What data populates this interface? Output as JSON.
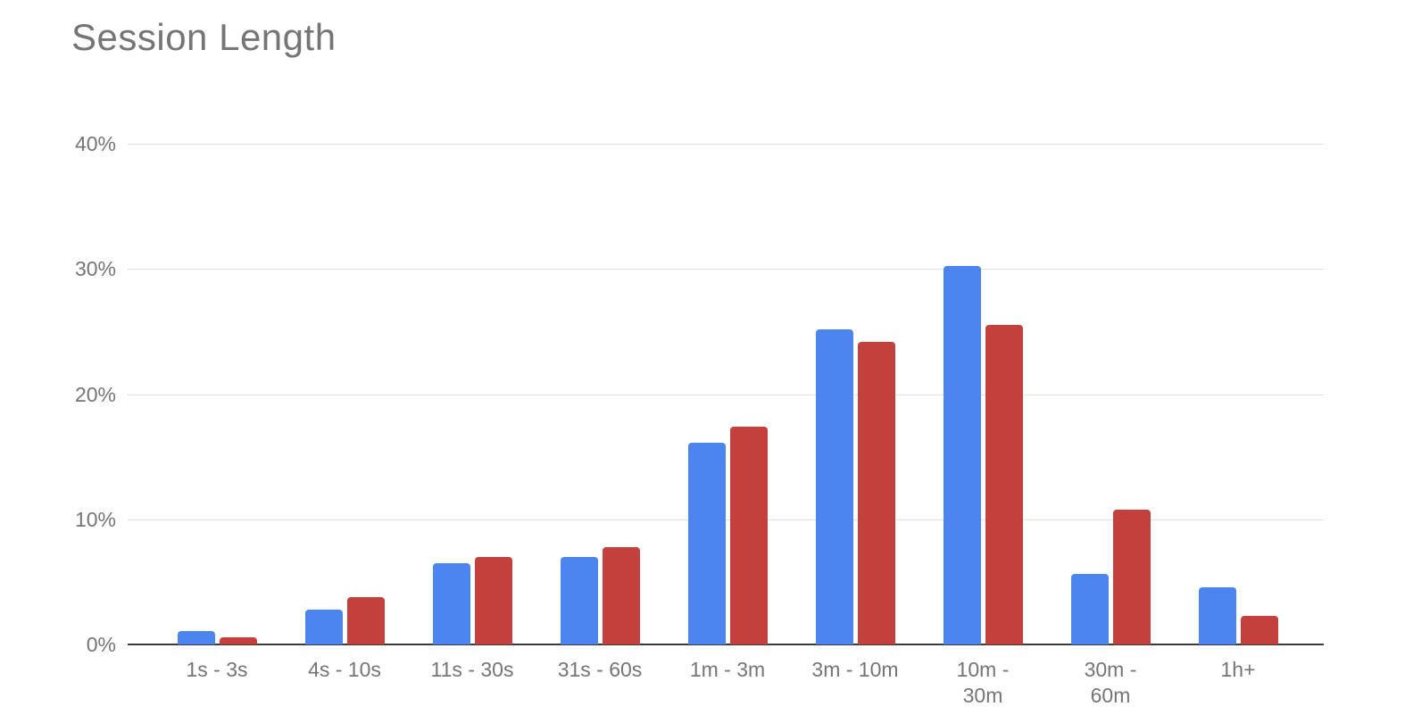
{
  "title": "Session Length",
  "colors": {
    "series_blue": "#4d85f0",
    "series_red": "#c4403c",
    "title_text": "#757575",
    "axis_text": "#757575",
    "gridline": "#e0e0e0",
    "axis_line": "#3b3b3b",
    "background": "#ffffff"
  },
  "chart_data": {
    "type": "bar",
    "title": "Session Length",
    "categories": [
      "1s - 3s",
      "4s - 10s",
      "11s - 30s",
      "31s - 60s",
      "1m - 3m",
      "3m - 10m",
      "10m -\n30m",
      "30m -\n60m",
      "1h+"
    ],
    "series": [
      {
        "name": "blue",
        "color": "#4d85f0",
        "values": [
          1.1,
          2.8,
          6.5,
          7.0,
          16.1,
          25.2,
          30.2,
          5.6,
          4.6
        ]
      },
      {
        "name": "red",
        "color": "#c4403c",
        "values": [
          0.6,
          3.8,
          7.0,
          7.8,
          17.4,
          24.2,
          25.5,
          10.8,
          2.3
        ]
      }
    ],
    "xlabel": "",
    "ylabel": "",
    "y_ticks": [
      "0%",
      "10%",
      "20%",
      "30%",
      "40%"
    ],
    "ylim": [
      0,
      40
    ],
    "grid": true,
    "legend": "none"
  }
}
